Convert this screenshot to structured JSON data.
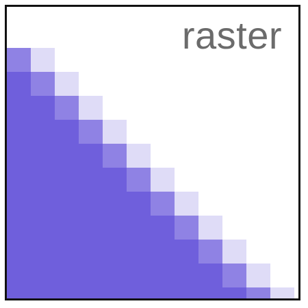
{
  "label": "raster",
  "colors": {
    "fill": "#6f5fdc",
    "background": "#ffffff",
    "text": "#6b6b6b",
    "border": "#111111"
  }
}
